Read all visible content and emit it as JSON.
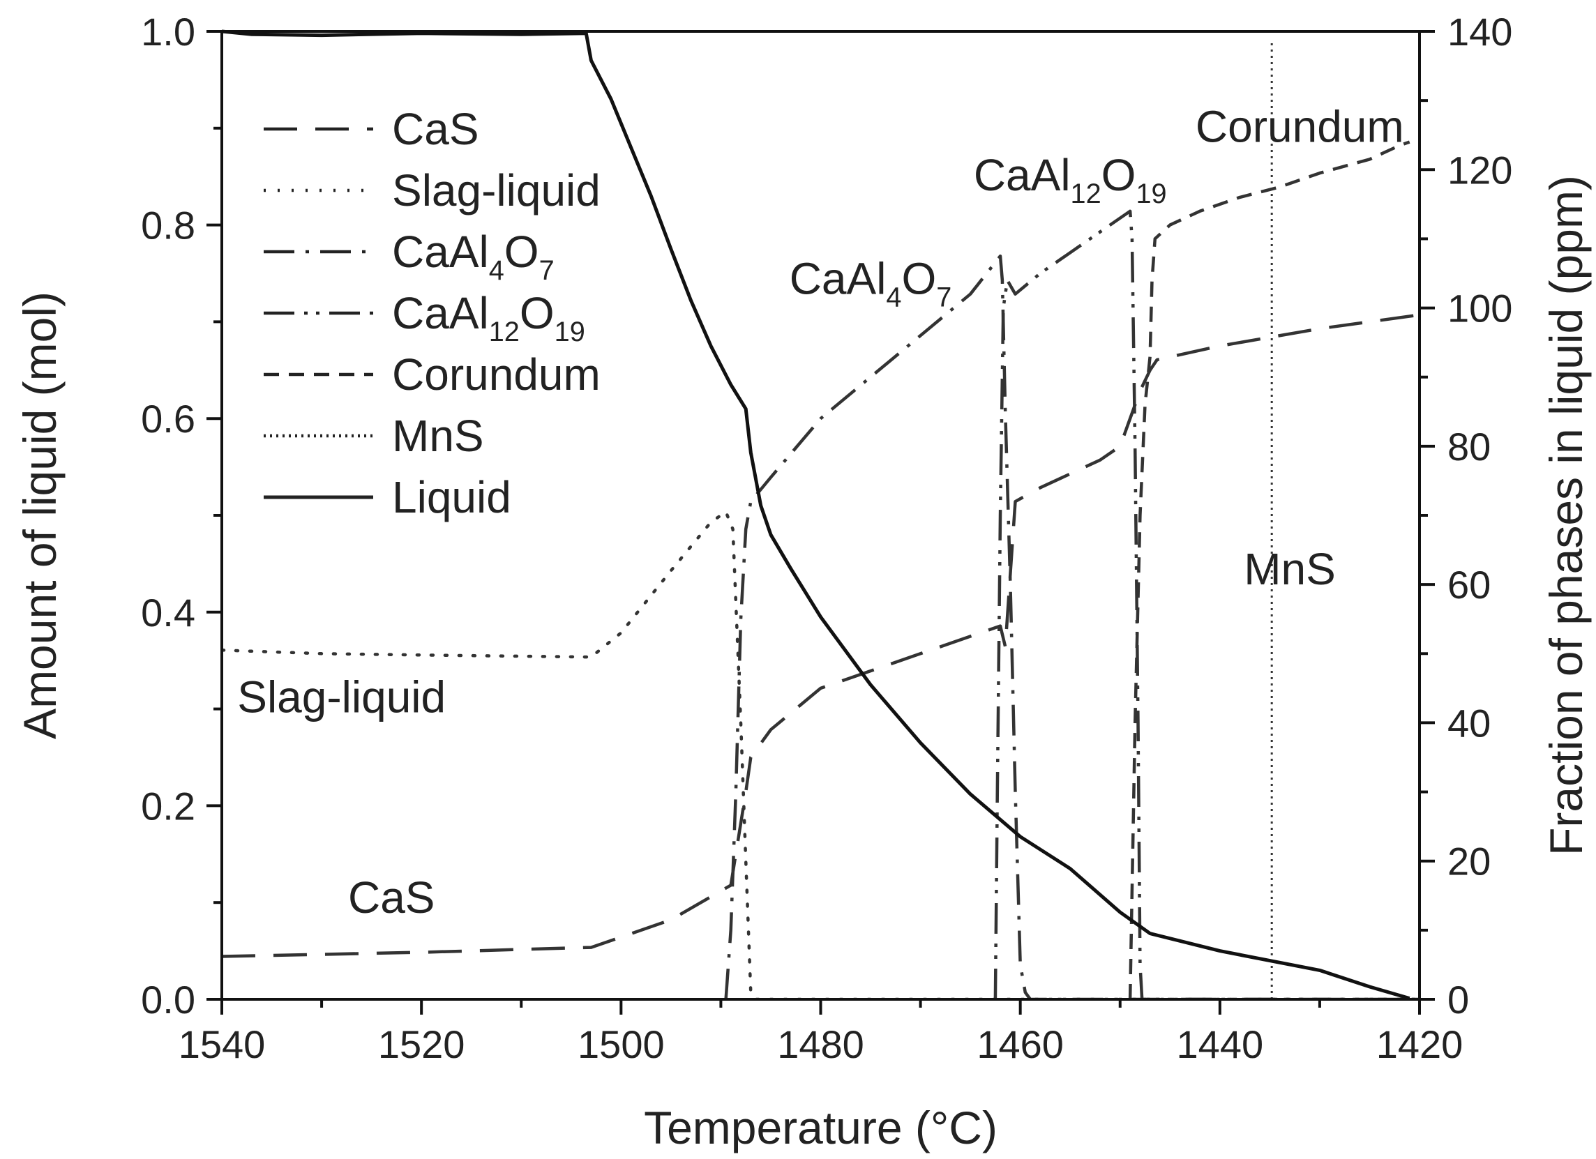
{
  "chart_data": {
    "type": "line",
    "x_axis": {
      "label": "Temperature (°C)",
      "range": [
        1540,
        1420
      ],
      "reversed": true,
      "ticks": [
        1540,
        1520,
        1500,
        1480,
        1460,
        1440,
        1420
      ],
      "tick_labels": [
        "1540",
        "1520",
        "1500",
        "1480",
        "1460",
        "1440",
        "1420"
      ],
      "minor_step": 10
    },
    "y_left": {
      "label": "Amount of liquid (mol)",
      "range": [
        0,
        1.0
      ],
      "ticks": [
        0.0,
        0.2,
        0.4,
        0.6,
        0.8,
        1.0
      ],
      "tick_labels": [
        "0.0",
        "0.2",
        "0.4",
        "0.6",
        "0.8",
        "1.0"
      ],
      "minor_step": 0.1
    },
    "y_right": {
      "label": "Fraction of phases in liquid (ppm)",
      "range": [
        0,
        140
      ],
      "ticks": [
        0,
        20,
        40,
        60,
        80,
        100,
        120,
        140
      ],
      "tick_labels": [
        "0",
        "20",
        "40",
        "60",
        "80",
        "100",
        "120",
        "140"
      ],
      "minor_step": 10
    },
    "series": [
      {
        "name": "CaS",
        "legend_label": "CaS",
        "dash": "48 26",
        "axis": "right",
        "points": [
          [
            1540,
            6.2
          ],
          [
            1520,
            6.8
          ],
          [
            1503,
            7.5
          ],
          [
            1495,
            11.5
          ],
          [
            1489,
            16.5
          ],
          [
            1487.5,
            30
          ],
          [
            1487,
            35
          ],
          [
            1485,
            39
          ],
          [
            1480,
            45
          ],
          [
            1470,
            50
          ],
          [
            1462,
            54
          ],
          [
            1461.5,
            51
          ],
          [
            1460.5,
            72
          ],
          [
            1458,
            74
          ],
          [
            1452,
            78
          ],
          [
            1450,
            80
          ],
          [
            1448,
            88
          ],
          [
            1447,
            91
          ],
          [
            1446.3,
            92.5
          ],
          [
            1440,
            94.5
          ],
          [
            1430,
            97
          ],
          [
            1420,
            99
          ]
        ]
      },
      {
        "name": "Slag-liquid",
        "legend_label": "Slag-liquid",
        "dash": "3 17",
        "axis": "right",
        "points": [
          [
            1540,
            50.5
          ],
          [
            1530,
            50
          ],
          [
            1520,
            49.8
          ],
          [
            1503,
            49.5
          ],
          [
            1500,
            53
          ],
          [
            1495,
            62
          ],
          [
            1491,
            69
          ],
          [
            1489.5,
            70.5
          ],
          [
            1488.8,
            68
          ],
          [
            1488,
            40
          ],
          [
            1487.5,
            20
          ],
          [
            1487,
            1
          ],
          [
            1486.5,
            0
          ],
          [
            1420,
            0
          ]
        ]
      },
      {
        "name": "CaAl4O7",
        "legend_label": "CaAl4O7",
        "dash": "44 16 5 16",
        "axis": "right",
        "points": [
          [
            1489.5,
            0
          ],
          [
            1489,
            10
          ],
          [
            1488.5,
            30
          ],
          [
            1488,
            55
          ],
          [
            1487.5,
            68
          ],
          [
            1487,
            72
          ],
          [
            1485,
            75.5
          ],
          [
            1480,
            84
          ],
          [
            1475,
            90
          ],
          [
            1470,
            96
          ],
          [
            1465,
            102
          ],
          [
            1462,
            107.5
          ],
          [
            1461.8,
            104
          ],
          [
            1461.5,
            85
          ],
          [
            1461,
            60
          ],
          [
            1460.5,
            30
          ],
          [
            1460,
            5
          ],
          [
            1459.5,
            1
          ],
          [
            1459,
            0
          ],
          [
            1420,
            0
          ]
        ]
      },
      {
        "name": "CaAl12O19",
        "legend_label": "CaAl12O19",
        "dash": "44 14 5 12 5 14",
        "axis": "right",
        "points": [
          [
            1462.5,
            0
          ],
          [
            1462.3,
            30
          ],
          [
            1462,
            70
          ],
          [
            1461.7,
            100
          ],
          [
            1461.3,
            104
          ],
          [
            1460.5,
            102
          ],
          [
            1458,
            105
          ],
          [
            1455,
            108
          ],
          [
            1452,
            111
          ],
          [
            1449,
            114
          ],
          [
            1448.8,
            110
          ],
          [
            1448.5,
            80
          ],
          [
            1448.2,
            40
          ],
          [
            1448,
            5
          ],
          [
            1447.8,
            0
          ],
          [
            1420,
            0
          ]
        ]
      },
      {
        "name": "Corundum",
        "legend_label": "Corundum",
        "dash": "22 14",
        "axis": "right",
        "points": [
          [
            1449,
            0
          ],
          [
            1448.5,
            40
          ],
          [
            1448,
            70
          ],
          [
            1447.5,
            86
          ],
          [
            1447,
            93
          ],
          [
            1446.8,
            104
          ],
          [
            1446.5,
            110
          ],
          [
            1445,
            112
          ],
          [
            1442,
            114
          ],
          [
            1438,
            116
          ],
          [
            1434,
            117.5
          ],
          [
            1430,
            119.5
          ],
          [
            1425,
            121.5
          ],
          [
            1422,
            123.5
          ],
          [
            1421,
            124
          ]
        ]
      },
      {
        "name": "MnS",
        "legend_label": "MnS",
        "dash": "3 6",
        "axis": "right",
        "points": [
          [
            1434.8,
            0
          ],
          [
            1434.8,
            138.5
          ]
        ]
      },
      {
        "name": "Liquid",
        "legend_label": "Liquid",
        "dash": "",
        "axis": "left",
        "points": [
          [
            1540,
            1.0
          ],
          [
            1537,
            0.997
          ],
          [
            1530,
            0.996
          ],
          [
            1520,
            0.998
          ],
          [
            1510,
            0.997
          ],
          [
            1503.5,
            0.998
          ],
          [
            1503,
            0.97
          ],
          [
            1501,
            0.93
          ],
          [
            1499,
            0.88
          ],
          [
            1497,
            0.83
          ],
          [
            1495,
            0.775
          ],
          [
            1493,
            0.722
          ],
          [
            1491,
            0.675
          ],
          [
            1489,
            0.635
          ],
          [
            1487.5,
            0.61
          ],
          [
            1487,
            0.565
          ],
          [
            1486,
            0.51
          ],
          [
            1485,
            0.48
          ],
          [
            1483,
            0.445
          ],
          [
            1480,
            0.395
          ],
          [
            1475,
            0.325
          ],
          [
            1470,
            0.265
          ],
          [
            1465,
            0.212
          ],
          [
            1460,
            0.168
          ],
          [
            1455,
            0.135
          ],
          [
            1450,
            0.09
          ],
          [
            1447,
            0.068
          ],
          [
            1440,
            0.05
          ],
          [
            1430,
            0.03
          ],
          [
            1425,
            0.013
          ],
          [
            1421,
            0.001
          ]
        ]
      }
    ],
    "legend": {
      "position": "top-left",
      "items": [
        {
          "label": "CaS",
          "dash": "48 26"
        },
        {
          "label": "Slag-liquid",
          "dash": "3 17"
        },
        {
          "label": "CaAl4O7",
          "dash": "44 16 5 16"
        },
        {
          "label": "CaAl12O19",
          "dash": "44 14 5 12 5 14"
        },
        {
          "label": "Corundum",
          "dash": "22 14"
        },
        {
          "label": "MnS",
          "dash": "3 6"
        },
        {
          "label": "Liquid",
          "dash": ""
        }
      ]
    },
    "annotations": [
      {
        "text": "CaS",
        "at_x": 1523,
        "at_y_right": 12.5
      },
      {
        "text": "Slag-liquid",
        "at_x": 1528,
        "at_y_right": 41.5
      },
      {
        "text": "CaAl4O7",
        "at_x": 1475,
        "at_y_right": 102
      },
      {
        "text": "CaAl12O19",
        "at_x": 1455,
        "at_y_right": 117
      },
      {
        "text": "Corundum",
        "at_x": 1432,
        "at_y_right": 124
      },
      {
        "text": "MnS",
        "at_x": 1433,
        "at_y_right": 60
      }
    ]
  }
}
